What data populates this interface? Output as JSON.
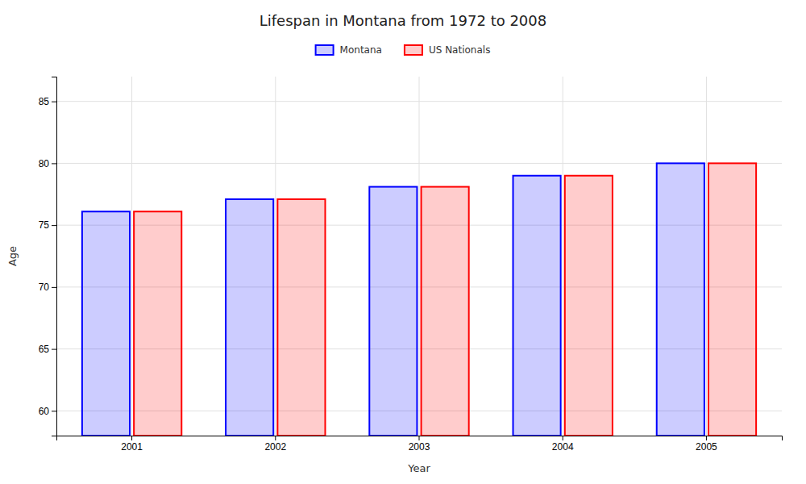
{
  "chart_data": {
    "type": "bar",
    "title": "Lifespan in Montana from 1972 to 2008",
    "xlabel": "Year",
    "ylabel": "Age",
    "categories": [
      "2001",
      "2002",
      "2003",
      "2004",
      "2005"
    ],
    "series": [
      {
        "name": "Montana",
        "color": "#0000ff",
        "values": [
          76.1,
          77.1,
          78.1,
          79.0,
          80.0
        ]
      },
      {
        "name": "US Nationals",
        "color": "#ff0000",
        "values": [
          76.1,
          77.1,
          78.1,
          79.0,
          80.0
        ]
      }
    ],
    "ylim": [
      58,
      87
    ],
    "yticks": [
      60,
      65,
      70,
      75,
      80,
      85
    ],
    "grid": true,
    "legend": "top"
  }
}
